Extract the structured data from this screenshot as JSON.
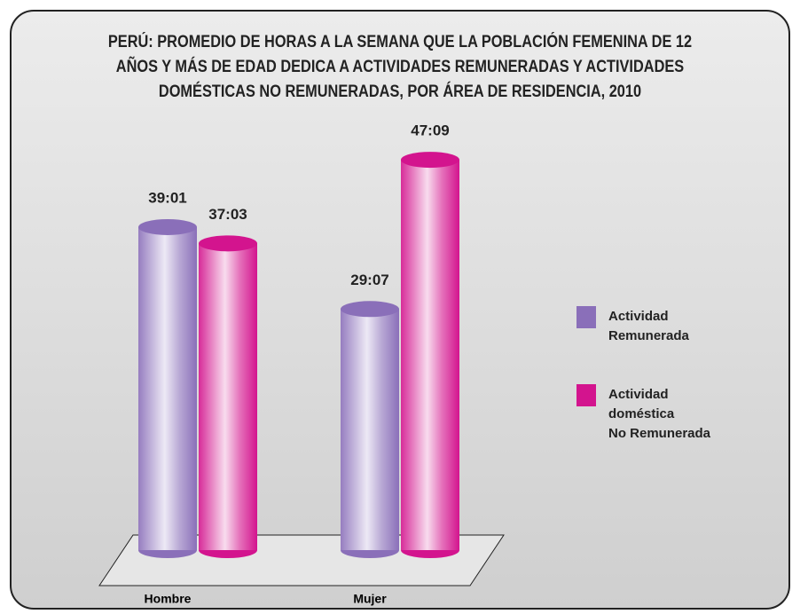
{
  "chart_data": {
    "type": "bar",
    "title": "PERÚ: PROMEDIO DE HORAS A LA SEMANA QUE LA POBLACIÓN FEMENINA DE 12 AÑOS Y MÁS DE EDAD DEDICA A ACTIVIDADES REMUNERADAS Y ACTIVIDADES DOMÉSTICAS NO REMUNERADAS, POR ÁREA DE RESIDENCIA, 2010",
    "categories": [
      "Hombre",
      "Mujer"
    ],
    "series": [
      {
        "name": "Actividad\nRemunerada",
        "color": "#8a6fb9",
        "values": [
          39.02,
          29.12
        ],
        "value_labels": [
          "39:01",
          "29:07"
        ]
      },
      {
        "name": "Actividad\ndoméstica\nNo Remunerada",
        "color": "#d3148e",
        "values": [
          37.05,
          47.15
        ],
        "value_labels": [
          "37:03",
          "47:09"
        ]
      }
    ],
    "legend": "right"
  }
}
